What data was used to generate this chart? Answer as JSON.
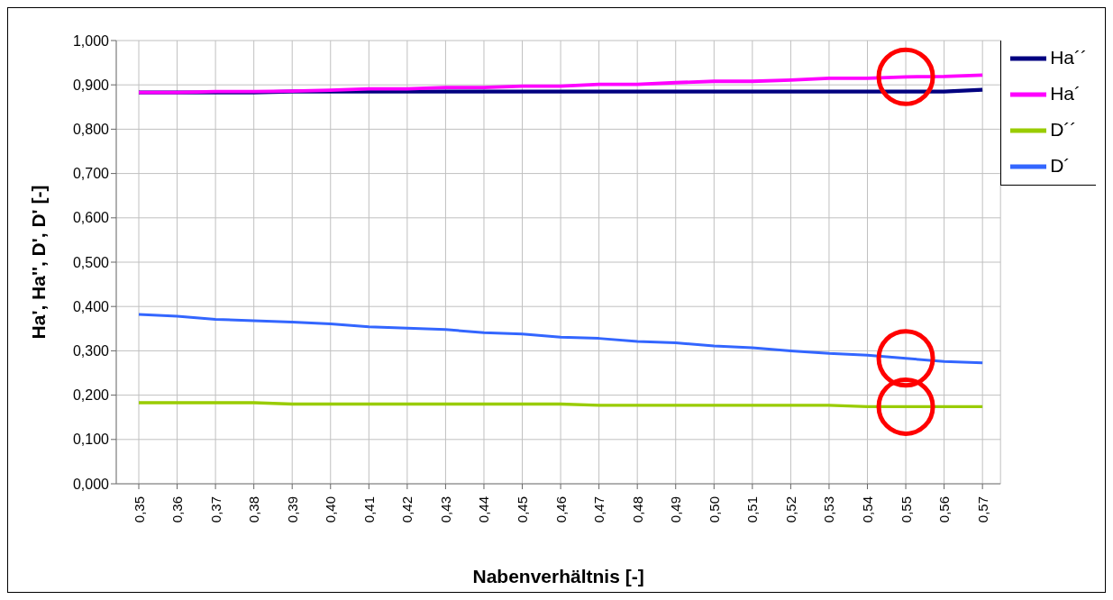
{
  "chart_data": {
    "type": "line",
    "xlabel": "Nabenverhältnis [-]",
    "ylabel": "Ha', Ha'', D', D' [-]",
    "categories": [
      "0,35",
      "0,36",
      "0,37",
      "0,38",
      "0,39",
      "0,40",
      "0,41",
      "0,42",
      "0,43",
      "0,44",
      "0,45",
      "0,46",
      "0,47",
      "0,48",
      "0,49",
      "0,50",
      "0,51",
      "0,52",
      "0,53",
      "0,54",
      "0,55",
      "0,56",
      "0,57"
    ],
    "series": [
      {
        "name": "Ha´´",
        "color": "#000080",
        "values": [
          0.883,
          0.883,
          0.883,
          0.883,
          0.885,
          0.885,
          0.885,
          0.885,
          0.885,
          0.885,
          0.885,
          0.885,
          0.885,
          0.885,
          0.885,
          0.885,
          0.885,
          0.885,
          0.885,
          0.885,
          0.885,
          0.885,
          0.889
        ]
      },
      {
        "name": "Ha´",
        "color": "#ff00ff",
        "values": [
          0.883,
          0.883,
          0.885,
          0.885,
          0.886,
          0.888,
          0.891,
          0.891,
          0.894,
          0.894,
          0.897,
          0.897,
          0.901,
          0.901,
          0.905,
          0.908,
          0.908,
          0.911,
          0.915,
          0.915,
          0.918,
          0.919,
          0.922
        ]
      },
      {
        "name": "D´´",
        "color": "#99cc00",
        "values": [
          0.183,
          0.183,
          0.183,
          0.183,
          0.18,
          0.18,
          0.18,
          0.18,
          0.18,
          0.18,
          0.18,
          0.18,
          0.177,
          0.177,
          0.177,
          0.177,
          0.177,
          0.177,
          0.177,
          0.174,
          0.174,
          0.174,
          0.174
        ]
      },
      {
        "name": "D´",
        "color": "#3366ff",
        "values": [
          0.382,
          0.378,
          0.371,
          0.368,
          0.365,
          0.361,
          0.354,
          0.351,
          0.348,
          0.341,
          0.338,
          0.331,
          0.328,
          0.321,
          0.318,
          0.311,
          0.307,
          0.3,
          0.294,
          0.29,
          0.283,
          0.276,
          0.273
        ]
      }
    ],
    "ylim": [
      0,
      1
    ],
    "yticks": [
      {
        "value": 0,
        "label": "0,000"
      },
      {
        "value": 0.1,
        "label": "0,100"
      },
      {
        "value": 0.2,
        "label": "0,200"
      },
      {
        "value": 0.3,
        "label": "0,300"
      },
      {
        "value": 0.4,
        "label": "0,400"
      },
      {
        "value": 0.5,
        "label": "0,500"
      },
      {
        "value": 0.6,
        "label": "0,600"
      },
      {
        "value": 0.7,
        "label": "0,700"
      },
      {
        "value": 0.8,
        "label": "0,800"
      },
      {
        "value": 0.9,
        "label": "0,900"
      },
      {
        "value": 1,
        "label": "1,000"
      }
    ],
    "grid": true,
    "legend": "top right",
    "marker": "none",
    "line_style": "solid"
  }
}
